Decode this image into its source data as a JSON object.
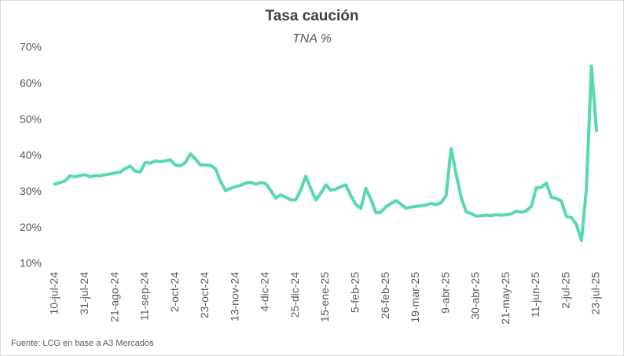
{
  "chart_data": {
    "type": "line",
    "title": "Tasa caución",
    "subtitle": "TNA %",
    "source": "Fuente: LCG en base a A3 Mercados",
    "color": "#58d9ab",
    "grid": false,
    "ylim": [
      10,
      70
    ],
    "yticks": [
      {
        "value": 10,
        "label": "10%"
      },
      {
        "value": 20,
        "label": "20%"
      },
      {
        "value": 30,
        "label": "30%"
      },
      {
        "value": 40,
        "label": "40%"
      },
      {
        "value": 50,
        "label": "50%"
      },
      {
        "value": 60,
        "label": "60%"
      },
      {
        "value": 70,
        "label": "70%"
      }
    ],
    "categories": [
      "10-jul-24",
      null,
      null,
      null,
      null,
      null,
      "31-jul-24",
      null,
      null,
      null,
      null,
      null,
      "21-ago-24",
      null,
      null,
      null,
      null,
      null,
      "11-sep-24",
      null,
      null,
      null,
      null,
      null,
      "2-oct-24",
      null,
      null,
      null,
      null,
      null,
      "23-oct-24",
      null,
      null,
      null,
      null,
      null,
      "13-nov-24",
      null,
      null,
      null,
      null,
      null,
      "4-dic-24",
      null,
      null,
      null,
      null,
      null,
      "25-dic-24",
      null,
      null,
      null,
      null,
      null,
      "15-ene-25",
      null,
      null,
      null,
      null,
      null,
      "5-feb-25",
      null,
      null,
      null,
      null,
      null,
      "26-feb-25",
      null,
      null,
      null,
      null,
      null,
      "19-mar-25",
      null,
      null,
      null,
      null,
      null,
      "9-abr-25",
      null,
      null,
      null,
      null,
      null,
      "30-abr-25",
      null,
      null,
      null,
      null,
      null,
      "21-may-25",
      null,
      null,
      null,
      null,
      null,
      "11-jun-25",
      null,
      null,
      null,
      null,
      null,
      "2-jul-25",
      null,
      null,
      null,
      null,
      null,
      "23-jul-25"
    ],
    "values": [
      32.2,
      32.6,
      33.1,
      34.5,
      34.2,
      34.6,
      34.8,
      34.2,
      34.6,
      34.5,
      34.8,
      35.0,
      35.3,
      35.5,
      36.5,
      37.2,
      35.8,
      35.6,
      38.2,
      38.0,
      38.6,
      38.4,
      38.7,
      38.9,
      37.5,
      37.3,
      38.2,
      40.6,
      39.2,
      37.5,
      37.5,
      37.4,
      36.5,
      33.0,
      30.4,
      31.0,
      31.5,
      31.8,
      32.5,
      32.7,
      32.2,
      32.6,
      32.4,
      30.5,
      28.3,
      29.2,
      28.6,
      27.8,
      27.8,
      30.5,
      34.4,
      31.0,
      27.8,
      29.6,
      32.0,
      30.5,
      30.8,
      31.5,
      32.0,
      29.0,
      26.5,
      25.5,
      31.0,
      28.0,
      24.3,
      24.4,
      25.9,
      26.8,
      27.6,
      26.6,
      25.5,
      25.8,
      26.0,
      26.2,
      26.4,
      26.8,
      26.5,
      27.0,
      29.0,
      42.0,
      35.0,
      28.5,
      24.5,
      24.0,
      23.3,
      23.4,
      23.6,
      23.5,
      23.7,
      23.6,
      23.7,
      23.9,
      24.7,
      24.4,
      24.8,
      26.0,
      31.2,
      31.3,
      32.5,
      28.5,
      28.2,
      27.5,
      23.2,
      22.9,
      21.0,
      16.5,
      31.0,
      65.0,
      47.0
    ]
  }
}
